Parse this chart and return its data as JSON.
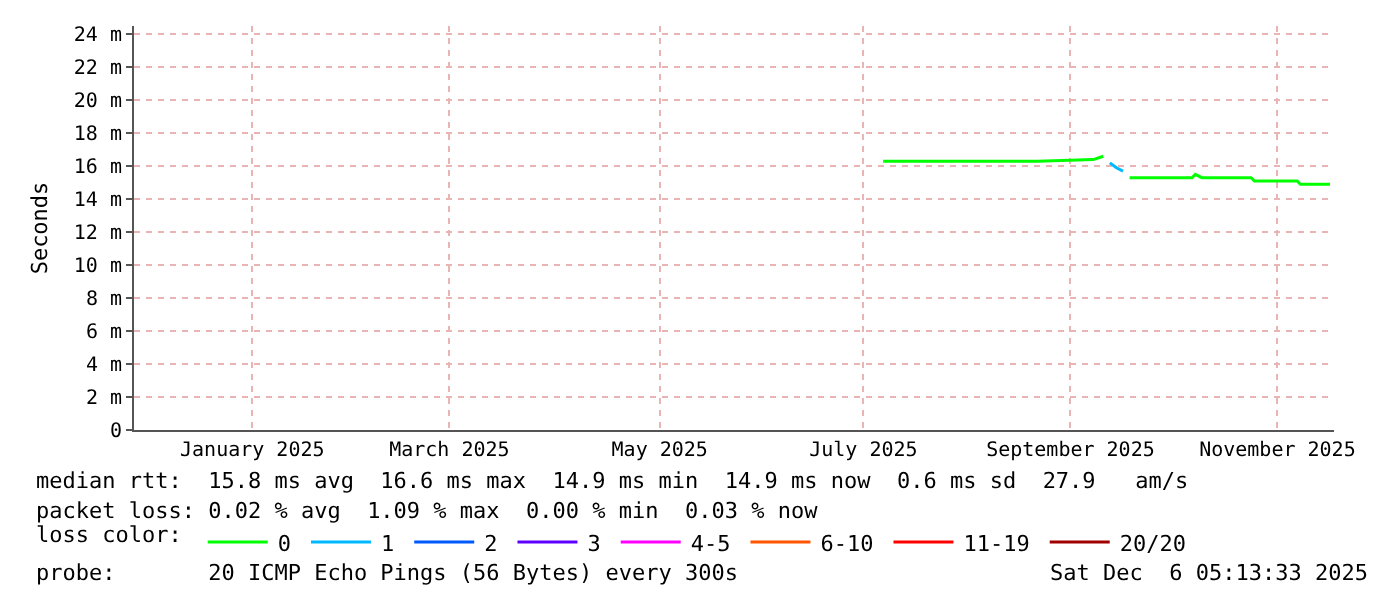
{
  "chart_data": {
    "type": "line",
    "ylabel": "Seconds",
    "legend_title": "loss color:",
    "legend": "bottom",
    "grid": true,
    "marker": "none",
    "line_style": "solid",
    "x": [
      "2025-07-22",
      "2025-08-14",
      "2025-09-07",
      "2025-09-24",
      "2025-09-27",
      "2025-09-29",
      "2025-10-01",
      "2025-10-03",
      "2025-10-05",
      "2025-10-24",
      "2025-10-25",
      "2025-10-27",
      "2025-11-11",
      "2025-11-12",
      "2025-11-25",
      "2025-11-26",
      "2025-12-05"
    ],
    "series": [
      {
        "name": "0",
        "color": "#00ff00",
        "values": [
          16.3,
          16.3,
          16.3,
          16.4,
          16.6,
          null,
          null,
          null,
          15.3,
          15.3,
          15.5,
          15.3,
          15.3,
          15.1,
          15.1,
          14.9,
          14.9
        ]
      },
      {
        "name": "1",
        "color": "#00b8ff",
        "values": [
          null,
          null,
          null,
          null,
          null,
          16.2,
          15.9,
          15.7,
          null,
          null,
          null,
          null,
          null,
          null,
          null,
          null,
          null
        ]
      },
      {
        "name": "2",
        "color": "#0059ff",
        "values": [
          null,
          null,
          null,
          null,
          null,
          null,
          null,
          null,
          null,
          null,
          null,
          null,
          null,
          null,
          null,
          null,
          null
        ]
      },
      {
        "name": "3",
        "color": "#5e00ff",
        "values": [
          null,
          null,
          null,
          null,
          null,
          null,
          null,
          null,
          null,
          null,
          null,
          null,
          null,
          null,
          null,
          null,
          null
        ]
      },
      {
        "name": "4-5",
        "color": "#ff00ff",
        "values": [
          null,
          null,
          null,
          null,
          null,
          null,
          null,
          null,
          null,
          null,
          null,
          null,
          null,
          null,
          null,
          null,
          null
        ]
      },
      {
        "name": "6-10",
        "color": "#ff5500",
        "values": [
          null,
          null,
          null,
          null,
          null,
          null,
          null,
          null,
          null,
          null,
          null,
          null,
          null,
          null,
          null,
          null,
          null
        ]
      },
      {
        "name": "11-19",
        "color": "#ff0000",
        "values": [
          null,
          null,
          null,
          null,
          null,
          null,
          null,
          null,
          null,
          null,
          null,
          null,
          null,
          null,
          null,
          null,
          null
        ]
      },
      {
        "name": "20/20",
        "color": "#a10000",
        "values": [
          null,
          null,
          null,
          null,
          null,
          null,
          null,
          null,
          null,
          null,
          null,
          null,
          null,
          null,
          null,
          null,
          null
        ]
      }
    ],
    "xlim": [
      "2024-12-06",
      "2025-12-06T05:13"
    ],
    "xticks": [
      {
        "value": "2025-01-11",
        "label": "January 2025"
      },
      {
        "value": "2025-03-12",
        "label": "March 2025"
      },
      {
        "value": "2025-05-15",
        "label": "May 2025"
      },
      {
        "value": "2025-07-16",
        "label": "July 2025"
      },
      {
        "value": "2025-09-17",
        "label": "September 2025"
      },
      {
        "value": "2025-11-19",
        "label": "November 2025"
      }
    ],
    "ylim": [
      0,
      24.5
    ],
    "yticks": [
      0,
      {
        "value": 2,
        "label": "2 m"
      },
      {
        "value": 4,
        "label": "4 m"
      },
      {
        "value": 6,
        "label": "6 m"
      },
      {
        "value": 8,
        "label": "8 m"
      },
      {
        "value": 10,
        "label": "10 m"
      },
      {
        "value": 12,
        "label": "12 m"
      },
      {
        "value": 14,
        "label": "14 m"
      },
      {
        "value": 16,
        "label": "16 m"
      },
      {
        "value": 18,
        "label": "18 m"
      },
      {
        "value": 20,
        "label": "20 m"
      },
      {
        "value": 22,
        "label": "22 m"
      },
      {
        "value": 24,
        "label": "24 m"
      }
    ],
    "annotations": [
      "median rtt:  15.8 ms avg  16.6 ms max  14.9 ms min  14.9 ms now  0.6 ms sd  27.9   am/s",
      "packet loss: 0.02 % avg  1.09 % max  0.00 % min  0.03 % now",
      "probe:       20 ICMP Echo Pings (56 Bytes) every 300s",
      "Sat Dec  6 05:13:33 2025"
    ]
  }
}
